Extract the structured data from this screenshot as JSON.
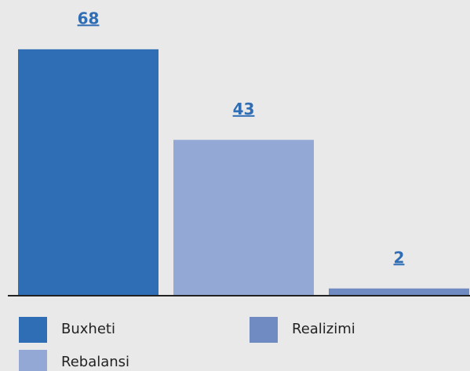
{
  "chart_data": {
    "type": "bar",
    "categories": [
      "Buxheti",
      "Rebalansi",
      "Realizimi"
    ],
    "values": [
      68,
      43,
      2
    ],
    "colors": [
      "#2f6db5",
      "#94a8d6",
      "#6f8bc2"
    ],
    "label_color": "#2f6db5"
  }
}
